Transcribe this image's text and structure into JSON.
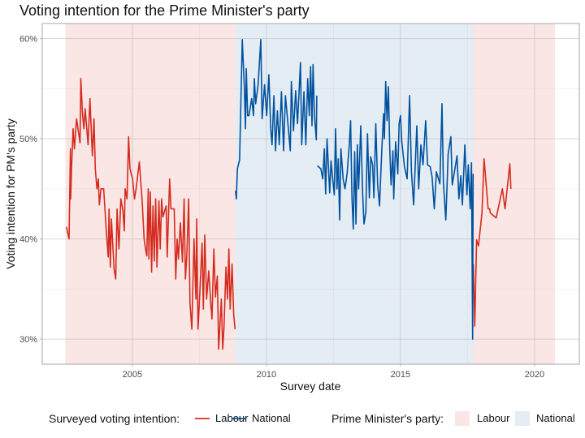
{
  "chart_data": {
    "type": "line",
    "title": "Voting intention for the Prime Minister's party",
    "xlabel": "Survey date",
    "ylabel": "Voting intention for PM's party",
    "xlim": [
      2001.64,
      2021.67
    ],
    "ylim": [
      27.5,
      61.5
    ],
    "x_ticks": [
      2005,
      2010,
      2015,
      2020
    ],
    "x_tick_labels": [
      "2005",
      "2010",
      "2015",
      "2020"
    ],
    "y_ticks": [
      30,
      40,
      50,
      60
    ],
    "y_tick_labels": [
      "30%",
      "40%",
      "50%",
      "60%"
    ],
    "grid": true,
    "legend_placement": "bottom",
    "colors": {
      "Labour_line": "#d52b1e",
      "National_line": "#00529f",
      "Labour_shade": "#fae6e4",
      "National_shade": "#e4ecf4"
    },
    "legend": {
      "lines_title": "Surveyed voting intention:",
      "shades_title": "Prime Minister's party:",
      "lines": [
        "Labour",
        "National"
      ],
      "shades": [
        "Labour",
        "National"
      ]
    },
    "pm_party_periods": [
      {
        "party": "Labour",
        "start": 2002.52,
        "end": 2008.85
      },
      {
        "party": "National",
        "start": 2008.85,
        "end": 2017.73
      },
      {
        "party": "Labour",
        "start": 2017.73,
        "end": 2020.76
      }
    ],
    "series": [
      {
        "name": "Labour",
        "segments": [
          [
            [
              2002.54,
              41.2
            ],
            [
              2002.64,
              40
            ],
            [
              2002.69,
              49
            ],
            [
              2002.7,
              44
            ],
            [
              2002.73,
              47
            ],
            [
              2002.79,
              51
            ],
            [
              2002.84,
              49
            ],
            [
              2002.92,
              52
            ],
            [
              2003.05,
              49.6
            ],
            [
              2003.08,
              56
            ],
            [
              2003.14,
              52.5
            ],
            [
              2003.19,
              51
            ],
            [
              2003.24,
              53
            ],
            [
              2003.35,
              49.4
            ],
            [
              2003.42,
              54
            ],
            [
              2003.51,
              48.3
            ],
            [
              2003.57,
              52
            ],
            [
              2003.62,
              47
            ],
            [
              2003.68,
              45
            ],
            [
              2003.73,
              46
            ],
            [
              2003.77,
              43.4
            ],
            [
              2003.83,
              45
            ],
            [
              2003.93,
              45
            ],
            [
              2004.03,
              40.7
            ],
            [
              2004.1,
              38.2
            ],
            [
              2004.13,
              43
            ],
            [
              2004.18,
              37.2
            ],
            [
              2004.22,
              42
            ],
            [
              2004.32,
              37
            ],
            [
              2004.38,
              36
            ],
            [
              2004.43,
              43
            ],
            [
              2004.5,
              39
            ],
            [
              2004.57,
              44
            ],
            [
              2004.65,
              42.8
            ],
            [
              2004.7,
              40.8
            ],
            [
              2004.73,
              45
            ],
            [
              2004.8,
              44
            ],
            [
              2004.86,
              50.2
            ],
            [
              2004.91,
              47
            ],
            [
              2005.01,
              46
            ],
            [
              2005.08,
              44
            ],
            [
              2005.14,
              45
            ],
            [
              2005.26,
              47.7
            ],
            [
              2005.36,
              44
            ],
            [
              2005.44,
              40
            ],
            [
              2005.49,
              39
            ],
            [
              2005.54,
              38.3
            ],
            [
              2005.59,
              45
            ],
            [
              2005.62,
              38
            ],
            [
              2005.67,
              44.7
            ],
            [
              2005.72,
              36.7
            ],
            [
              2005.77,
              43.3
            ],
            [
              2005.82,
              37.8
            ],
            [
              2005.87,
              44
            ],
            [
              2005.92,
              37.2
            ],
            [
              2005.99,
              43.8
            ],
            [
              2006.04,
              39
            ],
            [
              2006.09,
              44
            ],
            [
              2006.14,
              42.2
            ],
            [
              2006.26,
              43.3
            ],
            [
              2006.3,
              38.2
            ],
            [
              2006.39,
              46
            ],
            [
              2006.44,
              43
            ],
            [
              2006.56,
              43
            ],
            [
              2006.62,
              36
            ],
            [
              2006.67,
              40
            ],
            [
              2006.72,
              38
            ],
            [
              2006.79,
              41.6
            ],
            [
              2006.87,
              37.7
            ],
            [
              2006.93,
              44
            ],
            [
              2006.98,
              36
            ],
            [
              2007.03,
              38.3
            ],
            [
              2007.1,
              44
            ],
            [
              2007.15,
              33.6
            ],
            [
              2007.22,
              31
            ],
            [
              2007.3,
              40
            ],
            [
              2007.37,
              34
            ],
            [
              2007.4,
              42
            ],
            [
              2007.45,
              31
            ],
            [
              2007.52,
              34.7
            ],
            [
              2007.6,
              39.6
            ],
            [
              2007.65,
              33
            ],
            [
              2007.7,
              40.4
            ],
            [
              2007.77,
              34
            ],
            [
              2007.85,
              36.8
            ],
            [
              2007.92,
              33.8
            ],
            [
              2007.97,
              32
            ],
            [
              2008.04,
              39
            ],
            [
              2008.1,
              34.2
            ],
            [
              2008.17,
              36.3
            ],
            [
              2008.22,
              29
            ],
            [
              2008.32,
              34
            ],
            [
              2008.37,
              29
            ],
            [
              2008.42,
              31.2
            ],
            [
              2008.49,
              37.2
            ],
            [
              2008.55,
              34
            ],
            [
              2008.6,
              39
            ],
            [
              2008.65,
              33
            ],
            [
              2008.72,
              37.5
            ],
            [
              2008.78,
              32.5
            ],
            [
              2008.83,
              31
            ]
          ],
          [
            [
              2017.72,
              37.5
            ],
            [
              2017.77,
              31.3
            ],
            [
              2017.84,
              39.9
            ],
            [
              2017.91,
              39.3
            ],
            [
              2018.04,
              42.6
            ],
            [
              2018.12,
              48
            ],
            [
              2018.27,
              43
            ],
            [
              2018.33,
              43
            ],
            [
              2018.35,
              42.6
            ],
            [
              2018.57,
              42.1
            ],
            [
              2018.8,
              45
            ],
            [
              2018.9,
              43
            ],
            [
              2019.08,
              47.5
            ],
            [
              2019.12,
              45
            ]
          ]
        ]
      },
      {
        "name": "National",
        "segments": [
          [
            [
              2008.85,
              44.8
            ],
            [
              2008.88,
              44
            ],
            [
              2008.92,
              47
            ],
            [
              2009.0,
              47.9
            ],
            [
              2009.1,
              59.9
            ],
            [
              2009.18,
              55
            ],
            [
              2009.22,
              51
            ],
            [
              2009.25,
              57
            ],
            [
              2009.3,
              52.3
            ],
            [
              2009.35,
              52.3
            ],
            [
              2009.45,
              54
            ],
            [
              2009.52,
              52.3
            ],
            [
              2009.55,
              56
            ],
            [
              2009.6,
              53.5
            ],
            [
              2009.69,
              55.4
            ],
            [
              2009.74,
              57.6
            ],
            [
              2009.79,
              59.9
            ],
            [
              2009.84,
              52
            ],
            [
              2009.93,
              55.4
            ],
            [
              2010.01,
              52.3
            ],
            [
              2010.09,
              56.4
            ],
            [
              2010.16,
              51
            ],
            [
              2010.21,
              49.4
            ],
            [
              2010.28,
              54.3
            ],
            [
              2010.34,
              48.8
            ],
            [
              2010.41,
              52.8
            ],
            [
              2010.48,
              49.4
            ],
            [
              2010.56,
              54.7
            ],
            [
              2010.64,
              48.8
            ],
            [
              2010.71,
              54.3
            ],
            [
              2010.81,
              51.3
            ],
            [
              2010.89,
              48.8
            ],
            [
              2010.93,
              55.7
            ],
            [
              2011.01,
              50.8
            ],
            [
              2011.09,
              54.8
            ],
            [
              2011.16,
              51.5
            ],
            [
              2011.27,
              57.6
            ],
            [
              2011.32,
              49.4
            ],
            [
              2011.4,
              54.7
            ],
            [
              2011.47,
              49.4
            ],
            [
              2011.54,
              56
            ],
            [
              2011.6,
              52.3
            ],
            [
              2011.65,
              57.2
            ],
            [
              2011.7,
              51.3
            ],
            [
              2011.74,
              57.4
            ],
            [
              2011.79,
              52.3
            ],
            [
              2011.86,
              49.9
            ],
            [
              2011.88,
              54.3
            ]
          ],
          [
            [
              2011.9,
              47.3
            ],
            [
              2012.03,
              47
            ],
            [
              2012.1,
              46
            ],
            [
              2012.16,
              49
            ],
            [
              2012.21,
              44.5
            ],
            [
              2012.26,
              50
            ],
            [
              2012.31,
              47.4
            ],
            [
              2012.36,
              44.6
            ],
            [
              2012.41,
              47.8
            ],
            [
              2012.46,
              46.3
            ],
            [
              2012.53,
              44.4
            ],
            [
              2012.58,
              51
            ],
            [
              2012.63,
              45
            ],
            [
              2012.68,
              48
            ],
            [
              2012.73,
              41.9
            ],
            [
              2012.78,
              49
            ],
            [
              2012.86,
              46
            ],
            [
              2012.93,
              45
            ],
            [
              2013.01,
              46.5
            ],
            [
              2013.09,
              49.4
            ],
            [
              2013.14,
              51.8
            ],
            [
              2013.19,
              44.1
            ],
            [
              2013.24,
              41
            ],
            [
              2013.29,
              48.7
            ],
            [
              2013.34,
              41.5
            ],
            [
              2013.39,
              49.4
            ],
            [
              2013.44,
              45
            ],
            [
              2013.52,
              51.3
            ],
            [
              2013.59,
              44.4
            ],
            [
              2013.64,
              41.5
            ],
            [
              2013.71,
              42.7
            ],
            [
              2013.77,
              50.5
            ],
            [
              2013.84,
              44.1
            ],
            [
              2013.89,
              48.2
            ],
            [
              2013.96,
              47.4
            ],
            [
              2014.01,
              44.1
            ],
            [
              2014.08,
              51.5
            ],
            [
              2014.15,
              45.4
            ],
            [
              2014.22,
              43.3
            ],
            [
              2014.3,
              48.7
            ],
            [
              2014.37,
              52.5
            ],
            [
              2014.4,
              50
            ],
            [
              2014.45,
              55.7
            ],
            [
              2014.5,
              51.8
            ],
            [
              2014.55,
              55.2
            ],
            [
              2014.6,
              49
            ],
            [
              2014.65,
              45.4
            ],
            [
              2014.72,
              48.8
            ],
            [
              2014.75,
              44
            ],
            [
              2014.82,
              49.7
            ],
            [
              2014.9,
              46.5
            ],
            [
              2014.95,
              51.5
            ],
            [
              2015.0,
              52.3
            ],
            [
              2015.05,
              49.7
            ],
            [
              2015.15,
              47.2
            ],
            [
              2015.25,
              46
            ],
            [
              2015.34,
              54.3
            ],
            [
              2015.41,
              46.7
            ],
            [
              2015.49,
              43.4
            ],
            [
              2015.61,
              51.3
            ],
            [
              2015.68,
              45
            ],
            [
              2015.76,
              49.4
            ],
            [
              2015.84,
              47.4
            ],
            [
              2015.94,
              51.8
            ],
            [
              2016.01,
              47.4
            ],
            [
              2016.11,
              47.2
            ],
            [
              2016.18,
              46.2
            ],
            [
              2016.26,
              43
            ],
            [
              2016.34,
              46.7
            ],
            [
              2016.47,
              45.5
            ],
            [
              2016.55,
              53.5
            ],
            [
              2016.6,
              45.7
            ],
            [
              2016.69,
              41.9
            ],
            [
              2016.78,
              48.5
            ],
            [
              2016.88,
              50.2
            ],
            [
              2016.93,
              45.4
            ],
            [
              2017.03,
              47
            ],
            [
              2017.11,
              48.3
            ],
            [
              2017.18,
              44
            ],
            [
              2017.25,
              46.3
            ],
            [
              2017.31,
              43.4
            ],
            [
              2017.4,
              49.4
            ],
            [
              2017.48,
              44.4
            ],
            [
              2017.53,
              47.4
            ],
            [
              2017.6,
              43
            ],
            [
              2017.65,
              47.6
            ],
            [
              2017.69,
              30
            ],
            [
              2017.71,
              46.5
            ]
          ]
        ]
      }
    ]
  }
}
